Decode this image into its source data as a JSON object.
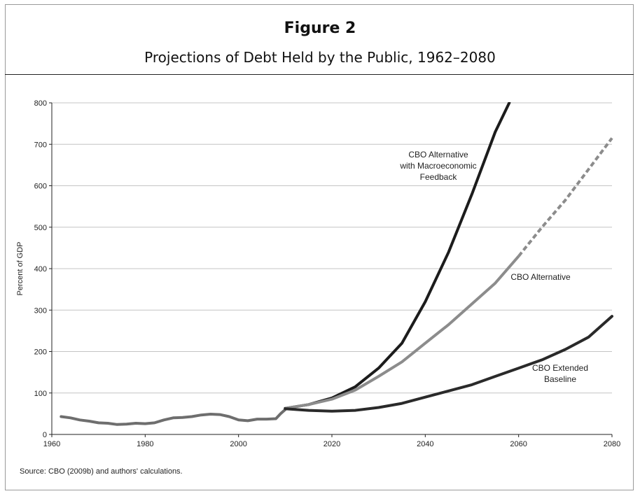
{
  "figure": {
    "label": "Figure 2",
    "title": "Projections of Debt Held by the Public, 1962–2080",
    "source": "Source: CBO (2009b) and authors' calculations."
  },
  "chart_data": {
    "type": "line",
    "title": "Projections of Debt Held by the Public, 1962–2080",
    "xlabel": "",
    "ylabel": "Percent of GDP",
    "xlim": [
      1960,
      2080
    ],
    "ylim": [
      0,
      800
    ],
    "xticks": [
      1960,
      1980,
      2000,
      2020,
      2040,
      2060,
      2080
    ],
    "yticks": [
      0,
      100,
      200,
      300,
      400,
      500,
      600,
      700,
      800
    ],
    "grid": "horizontal",
    "legend": "none (direct labels)",
    "series": [
      {
        "name": "",
        "color": "#6e6e6e",
        "style": "solid",
        "points": [
          [
            1962,
            43
          ],
          [
            1964,
            40
          ],
          [
            1966,
            35
          ],
          [
            1968,
            32
          ],
          [
            1970,
            28
          ],
          [
            1972,
            27
          ],
          [
            1974,
            24
          ],
          [
            1976,
            25
          ],
          [
            1978,
            27
          ],
          [
            1980,
            26
          ],
          [
            1982,
            28
          ],
          [
            1984,
            35
          ],
          [
            1986,
            40
          ],
          [
            1988,
            41
          ],
          [
            1990,
            43
          ],
          [
            1992,
            47
          ],
          [
            1994,
            49
          ],
          [
            1996,
            48
          ],
          [
            1998,
            43
          ],
          [
            2000,
            35
          ],
          [
            2002,
            33
          ],
          [
            2004,
            37
          ],
          [
            2006,
            37
          ],
          [
            2008,
            38
          ],
          [
            2009,
            50
          ],
          [
            2010,
            60
          ]
        ]
      },
      {
        "name": "CBO Alternative with Macroeconomic Feedback",
        "color": "#1c1c1c",
        "style": "solid",
        "points": [
          [
            2010,
            63
          ],
          [
            2015,
            72
          ],
          [
            2020,
            88
          ],
          [
            2025,
            115
          ],
          [
            2030,
            160
          ],
          [
            2035,
            220
          ],
          [
            2040,
            320
          ],
          [
            2045,
            440
          ],
          [
            2050,
            580
          ],
          [
            2055,
            730
          ],
          [
            2058,
            800
          ]
        ]
      },
      {
        "name": "CBO Alternative",
        "color": "#8c8c8c",
        "style": "solid-then-dashed",
        "dash_from": 2060,
        "points": [
          [
            2010,
            63
          ],
          [
            2015,
            72
          ],
          [
            2020,
            85
          ],
          [
            2025,
            107
          ],
          [
            2030,
            140
          ],
          [
            2035,
            175
          ],
          [
            2040,
            220
          ],
          [
            2045,
            265
          ],
          [
            2050,
            315
          ],
          [
            2055,
            365
          ],
          [
            2060,
            430
          ],
          [
            2065,
            500
          ],
          [
            2070,
            565
          ],
          [
            2075,
            640
          ],
          [
            2080,
            715
          ]
        ]
      },
      {
        "name": "CBO Extended Baseline",
        "color": "#2a2a2a",
        "style": "solid",
        "points": [
          [
            2010,
            62
          ],
          [
            2015,
            58
          ],
          [
            2020,
            56
          ],
          [
            2025,
            58
          ],
          [
            2030,
            65
          ],
          [
            2035,
            75
          ],
          [
            2040,
            90
          ],
          [
            2045,
            105
          ],
          [
            2050,
            120
          ],
          [
            2055,
            140
          ],
          [
            2060,
            160
          ],
          [
            2065,
            180
          ],
          [
            2070,
            205
          ],
          [
            2075,
            235
          ],
          [
            2080,
            285
          ]
        ]
      }
    ],
    "annotations": [
      {
        "series": "CBO Alternative with Macroeconomic Feedback",
        "lines": [
          "CBO Alternative",
          "with Macroeconomic",
          "Feedback"
        ]
      },
      {
        "series": "CBO Alternative",
        "lines": [
          "CBO Alternative"
        ]
      },
      {
        "series": "CBO Extended Baseline",
        "lines": [
          "CBO Extended",
          "Baseline"
        ]
      }
    ]
  }
}
